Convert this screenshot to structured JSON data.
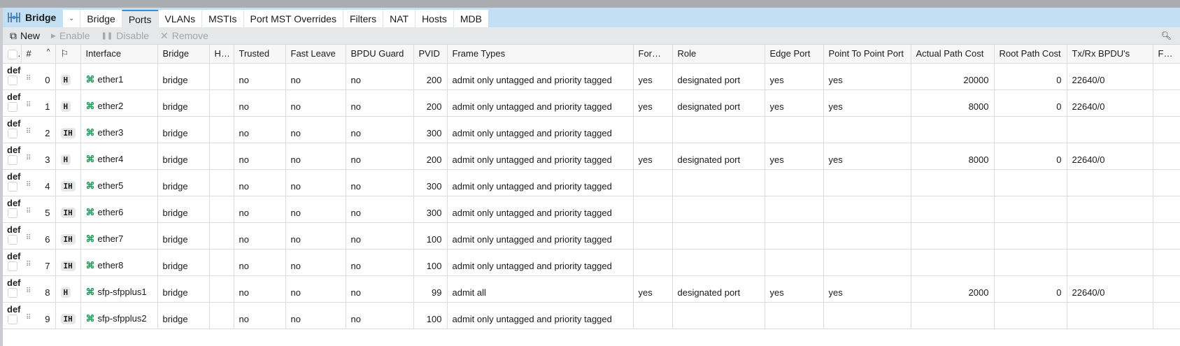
{
  "app": {
    "title": "Bridge"
  },
  "tabs": [
    {
      "label": "Bridge"
    },
    {
      "label": "Ports",
      "active": true
    },
    {
      "label": "VLANs"
    },
    {
      "label": "MSTIs"
    },
    {
      "label": "Port MST Overrides"
    },
    {
      "label": "Filters"
    },
    {
      "label": "NAT"
    },
    {
      "label": "Hosts"
    },
    {
      "label": "MDB"
    }
  ],
  "toolbar": {
    "new": "New",
    "enable": "Enable",
    "disable": "Disable",
    "remove": "Remove"
  },
  "columns": [
    "#",
    "Interface",
    "Bridge",
    "Ho...",
    "Trusted",
    "Fast Leave",
    "BPDU Guard",
    "PVID",
    "Frame Types",
    "Forwa...",
    "Role",
    "Edge Port",
    "Point To Point Port",
    "Actual Path Cost",
    "Root Path Cost",
    "Tx/Rx BPDU's",
    "Forwa"
  ],
  "rows": [
    {
      "comment": "defconf",
      "num": "0",
      "flags": "H",
      "iface": "ether1",
      "bridge": "bridge",
      "ho": "",
      "trusted": "no",
      "fast_leave": "no",
      "bpdu": "no",
      "pvid": "200",
      "frame": "admit only untagged and priority tagged",
      "fwd": "yes",
      "role": "designated port",
      "edge": "yes",
      "p2p": "yes",
      "actual": "20000",
      "root": "0",
      "txrx": "22640/0",
      "fwd2": ""
    },
    {
      "comment": "defconf",
      "num": "1",
      "flags": "H",
      "iface": "ether2",
      "bridge": "bridge",
      "ho": "",
      "trusted": "no",
      "fast_leave": "no",
      "bpdu": "no",
      "pvid": "200",
      "frame": "admit only untagged and priority tagged",
      "fwd": "yes",
      "role": "designated port",
      "edge": "yes",
      "p2p": "yes",
      "actual": "8000",
      "root": "0",
      "txrx": "22640/0",
      "fwd2": ""
    },
    {
      "comment": "defconf",
      "num": "2",
      "flags": "IH",
      "iface": "ether3",
      "bridge": "bridge",
      "ho": "",
      "trusted": "no",
      "fast_leave": "no",
      "bpdu": "no",
      "pvid": "300",
      "frame": "admit only untagged and priority tagged",
      "fwd": "",
      "role": "",
      "edge": "",
      "p2p": "",
      "actual": "",
      "root": "",
      "txrx": "",
      "fwd2": ""
    },
    {
      "comment": "defconf",
      "num": "3",
      "flags": "H",
      "iface": "ether4",
      "bridge": "bridge",
      "ho": "",
      "trusted": "no",
      "fast_leave": "no",
      "bpdu": "no",
      "pvid": "200",
      "frame": "admit only untagged and priority tagged",
      "fwd": "yes",
      "role": "designated port",
      "edge": "yes",
      "p2p": "yes",
      "actual": "8000",
      "root": "0",
      "txrx": "22640/0",
      "fwd2": ""
    },
    {
      "comment": "defconf",
      "num": "4",
      "flags": "IH",
      "iface": "ether5",
      "bridge": "bridge",
      "ho": "",
      "trusted": "no",
      "fast_leave": "no",
      "bpdu": "no",
      "pvid": "300",
      "frame": "admit only untagged and priority tagged",
      "fwd": "",
      "role": "",
      "edge": "",
      "p2p": "",
      "actual": "",
      "root": "",
      "txrx": "",
      "fwd2": ""
    },
    {
      "comment": "defconf",
      "num": "5",
      "flags": "IH",
      "iface": "ether6",
      "bridge": "bridge",
      "ho": "",
      "trusted": "no",
      "fast_leave": "no",
      "bpdu": "no",
      "pvid": "300",
      "frame": "admit only untagged and priority tagged",
      "fwd": "",
      "role": "",
      "edge": "",
      "p2p": "",
      "actual": "",
      "root": "",
      "txrx": "",
      "fwd2": ""
    },
    {
      "comment": "defconf",
      "num": "6",
      "flags": "IH",
      "iface": "ether7",
      "bridge": "bridge",
      "ho": "",
      "trusted": "no",
      "fast_leave": "no",
      "bpdu": "no",
      "pvid": "100",
      "frame": "admit only untagged and priority tagged",
      "fwd": "",
      "role": "",
      "edge": "",
      "p2p": "",
      "actual": "",
      "root": "",
      "txrx": "",
      "fwd2": ""
    },
    {
      "comment": "defconf",
      "num": "7",
      "flags": "IH",
      "iface": "ether8",
      "bridge": "bridge",
      "ho": "",
      "trusted": "no",
      "fast_leave": "no",
      "bpdu": "no",
      "pvid": "100",
      "frame": "admit only untagged and priority tagged",
      "fwd": "",
      "role": "",
      "edge": "",
      "p2p": "",
      "actual": "",
      "root": "",
      "txrx": "",
      "fwd2": ""
    },
    {
      "comment": "defconf",
      "num": "8",
      "flags": "H",
      "iface": "sfp-sfpplus1",
      "bridge": "bridge",
      "ho": "",
      "trusted": "no",
      "fast_leave": "no",
      "bpdu": "no",
      "pvid": "99",
      "frame": "admit all",
      "fwd": "yes",
      "role": "designated port",
      "edge": "yes",
      "p2p": "yes",
      "actual": "2000",
      "root": "0",
      "txrx": "22640/0",
      "fwd2": ""
    },
    {
      "comment": "defconf",
      "num": "9",
      "flags": "IH",
      "iface": "sfp-sfpplus2",
      "bridge": "bridge",
      "ho": "",
      "trusted": "no",
      "fast_leave": "no",
      "bpdu": "no",
      "pvid": "100",
      "frame": "admit only untagged and priority tagged",
      "fwd": "",
      "role": "",
      "edge": "",
      "p2p": "",
      "actual": "",
      "root": "",
      "txrx": "",
      "fwd2": ""
    }
  ],
  "colors": {
    "tabbar": "#c3dff3",
    "accent": "#3c8ed6",
    "interface_icon": "#1f9a5a"
  }
}
